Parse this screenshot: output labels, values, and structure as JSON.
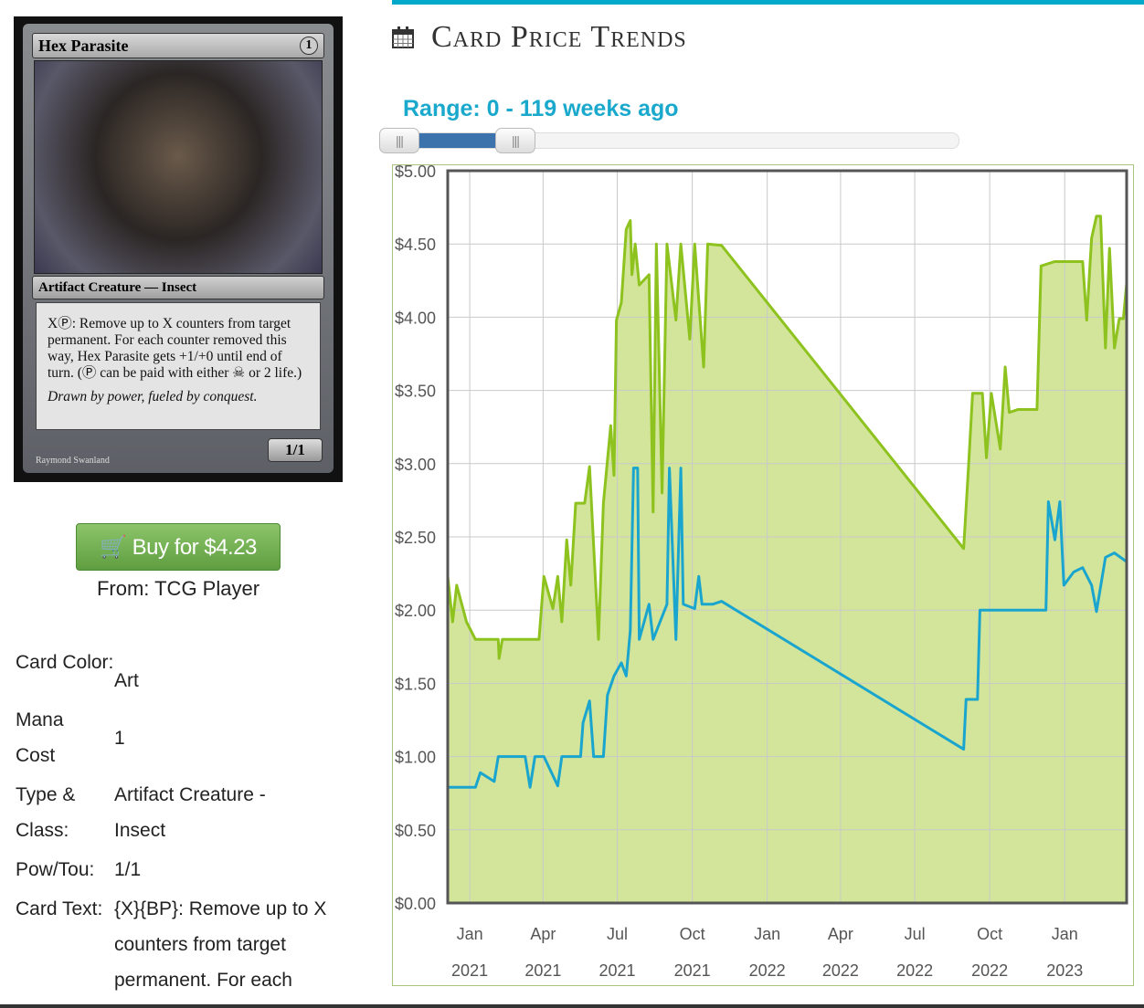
{
  "card": {
    "name": "Hex Parasite",
    "cost": "1",
    "type_line": "Artifact Creature — Insect",
    "rules_text": "XⓅ: Remove up to X counters from target permanent. For each counter removed this way, Hex Parasite gets +1/+0 until end of turn. (Ⓟ can be paid with either ☠ or 2 life.)",
    "flavor": "Drawn by power, fueled by conquest.",
    "pt": "1/1",
    "artist": "Raymond Swanland"
  },
  "buy": {
    "label": "Buy for $4.23",
    "icon": "shopping-cart-icon",
    "source": "From: TCG Player"
  },
  "details": [
    {
      "label": "Card Color:",
      "value": "Art"
    },
    {
      "label": "Mana Cost",
      "value": "1"
    },
    {
      "label": "Type & Class:",
      "value": "Artifact Creature - Insect"
    },
    {
      "label": "Pow/Tou:",
      "value": "1/1"
    },
    {
      "label": "Card Text:",
      "value": "{X}{BP}: Remove up to X counters from target permanent. For each"
    }
  ],
  "header": {
    "title": "Card Price Trends",
    "icon": "calendar-icon",
    "range_label": "Range: 0 - 119 weeks ago"
  },
  "slider": {
    "min_weeks": 0,
    "max_weeks": 119
  },
  "colors": {
    "accent": "#00a9c9",
    "green": "#8dc21f",
    "blue": "#1aa5cf",
    "fill": "#d3e59a",
    "buy": "#6aab4a"
  },
  "chart_data": {
    "type": "line",
    "x_type": "date",
    "xlim": [
      "2020-12-05",
      "2023-03-18"
    ],
    "ylim": [
      0,
      5
    ],
    "yticks": [
      "$0.00",
      "$0.50",
      "$1.00",
      "$1.50",
      "$2.00",
      "$2.50",
      "$3.00",
      "$3.50",
      "$4.00",
      "$4.50",
      "$5.00"
    ],
    "xticks": [
      {
        "date": "2021-01-01",
        "m": "Jan",
        "y": "2021"
      },
      {
        "date": "2021-04-01",
        "m": "Apr",
        "y": "2021"
      },
      {
        "date": "2021-07-01",
        "m": "Jul",
        "y": "2021"
      },
      {
        "date": "2021-10-01",
        "m": "Oct",
        "y": "2021"
      },
      {
        "date": "2022-01-01",
        "m": "Jan",
        "y": "2022"
      },
      {
        "date": "2022-04-01",
        "m": "Apr",
        "y": "2022"
      },
      {
        "date": "2022-07-01",
        "m": "Jul",
        "y": "2022"
      },
      {
        "date": "2022-10-01",
        "m": "Oct",
        "y": "2022"
      },
      {
        "date": "2023-01-01",
        "m": "Jan",
        "y": "2023"
      }
    ],
    "grid": true,
    "series": [
      {
        "color": "#8dc21f",
        "fill": true,
        "points": [
          [
            "2020-12-05",
            2.23
          ],
          [
            "2020-12-11",
            1.92
          ],
          [
            "2020-12-16",
            2.17
          ],
          [
            "2020-12-28",
            1.92
          ],
          [
            "2021-01-08",
            1.8
          ],
          [
            "2021-02-05",
            1.8
          ],
          [
            "2021-02-06",
            1.67
          ],
          [
            "2021-02-10",
            1.8
          ],
          [
            "2021-03-27",
            1.8
          ],
          [
            "2021-04-02",
            2.23
          ],
          [
            "2021-04-13",
            2.01
          ],
          [
            "2021-04-19",
            2.23
          ],
          [
            "2021-04-24",
            1.92
          ],
          [
            "2021-04-30",
            2.48
          ],
          [
            "2021-05-05",
            2.17
          ],
          [
            "2021-05-11",
            2.73
          ],
          [
            "2021-05-22",
            2.73
          ],
          [
            "2021-05-28",
            2.98
          ],
          [
            "2021-06-08",
            1.8
          ],
          [
            "2021-06-14",
            2.73
          ],
          [
            "2021-06-23",
            3.26
          ],
          [
            "2021-06-27",
            2.92
          ],
          [
            "2021-06-30",
            3.98
          ],
          [
            "2021-07-06",
            4.1
          ],
          [
            "2021-07-12",
            4.6
          ],
          [
            "2021-07-17",
            4.66
          ],
          [
            "2021-07-19",
            4.29
          ],
          [
            "2021-07-23",
            4.5
          ],
          [
            "2021-07-28",
            4.22
          ],
          [
            "2021-08-09",
            4.29
          ],
          [
            "2021-08-14",
            2.67
          ],
          [
            "2021-08-18",
            4.5
          ],
          [
            "2021-08-25",
            2.8
          ],
          [
            "2021-08-31",
            4.5
          ],
          [
            "2021-09-11",
            3.98
          ],
          [
            "2021-09-17",
            4.5
          ],
          [
            "2021-09-28",
            3.85
          ],
          [
            "2021-10-04",
            4.5
          ],
          [
            "2021-10-15",
            3.66
          ],
          [
            "2021-10-20",
            4.5
          ],
          [
            "2021-11-06",
            4.49
          ],
          [
            "2022-08-30",
            2.42
          ],
          [
            "2022-09-05",
            2.98
          ],
          [
            "2022-09-10",
            3.48
          ],
          [
            "2022-09-22",
            3.48
          ],
          [
            "2022-09-27",
            3.04
          ],
          [
            "2022-10-03",
            3.48
          ],
          [
            "2022-10-14",
            3.1
          ],
          [
            "2022-10-20",
            3.66
          ],
          [
            "2022-10-25",
            3.35
          ],
          [
            "2022-11-05",
            3.37
          ],
          [
            "2022-11-28",
            3.37
          ],
          [
            "2022-12-03",
            4.35
          ],
          [
            "2022-12-20",
            4.38
          ],
          [
            "2023-01-23",
            4.38
          ],
          [
            "2023-01-28",
            3.98
          ],
          [
            "2023-02-03",
            4.54
          ],
          [
            "2023-02-09",
            4.69
          ],
          [
            "2023-02-14",
            4.69
          ],
          [
            "2023-02-20",
            3.79
          ],
          [
            "2023-02-25",
            4.47
          ],
          [
            "2023-03-03",
            3.79
          ],
          [
            "2023-03-09",
            3.99
          ],
          [
            "2023-03-14",
            3.99
          ],
          [
            "2023-03-18",
            4.23
          ]
        ]
      },
      {
        "color": "#1aa5cf",
        "fill": false,
        "points": [
          [
            "2020-12-05",
            0.79
          ],
          [
            "2021-01-08",
            0.79
          ],
          [
            "2021-01-14",
            0.89
          ],
          [
            "2021-01-31",
            0.83
          ],
          [
            "2021-02-05",
            1.0
          ],
          [
            "2021-03-10",
            1.0
          ],
          [
            "2021-03-16",
            0.79
          ],
          [
            "2021-03-22",
            1.0
          ],
          [
            "2021-04-02",
            1.0
          ],
          [
            "2021-04-19",
            0.8
          ],
          [
            "2021-04-24",
            1.0
          ],
          [
            "2021-05-17",
            1.0
          ],
          [
            "2021-05-20",
            1.23
          ],
          [
            "2021-05-28",
            1.38
          ],
          [
            "2021-06-02",
            1.0
          ],
          [
            "2021-06-14",
            1.0
          ],
          [
            "2021-06-19",
            1.42
          ],
          [
            "2021-06-27",
            1.55
          ],
          [
            "2021-07-06",
            1.64
          ],
          [
            "2021-07-12",
            1.55
          ],
          [
            "2021-07-17",
            1.86
          ],
          [
            "2021-07-21",
            2.97
          ],
          [
            "2021-07-26",
            2.97
          ],
          [
            "2021-07-28",
            1.8
          ],
          [
            "2021-08-09",
            2.04
          ],
          [
            "2021-08-14",
            1.8
          ],
          [
            "2021-08-31",
            2.04
          ],
          [
            "2021-09-03",
            2.97
          ],
          [
            "2021-09-11",
            1.8
          ],
          [
            "2021-09-17",
            2.97
          ],
          [
            "2021-09-20",
            2.04
          ],
          [
            "2021-10-04",
            2.01
          ],
          [
            "2021-10-09",
            2.23
          ],
          [
            "2021-10-13",
            2.04
          ],
          [
            "2021-10-26",
            2.04
          ],
          [
            "2021-11-06",
            2.06
          ],
          [
            "2022-08-30",
            1.05
          ],
          [
            "2022-09-02",
            1.39
          ],
          [
            "2022-09-16",
            1.39
          ],
          [
            "2022-09-19",
            2.0
          ],
          [
            "2022-12-09",
            2.0
          ],
          [
            "2022-12-12",
            2.74
          ],
          [
            "2022-12-20",
            2.48
          ],
          [
            "2022-12-26",
            2.74
          ],
          [
            "2022-12-31",
            2.17
          ],
          [
            "2023-01-12",
            2.26
          ],
          [
            "2023-01-23",
            2.29
          ],
          [
            "2023-02-03",
            2.17
          ],
          [
            "2023-02-09",
            1.99
          ],
          [
            "2023-02-20",
            2.36
          ],
          [
            "2023-03-03",
            2.39
          ],
          [
            "2023-03-18",
            2.33
          ]
        ]
      }
    ]
  }
}
